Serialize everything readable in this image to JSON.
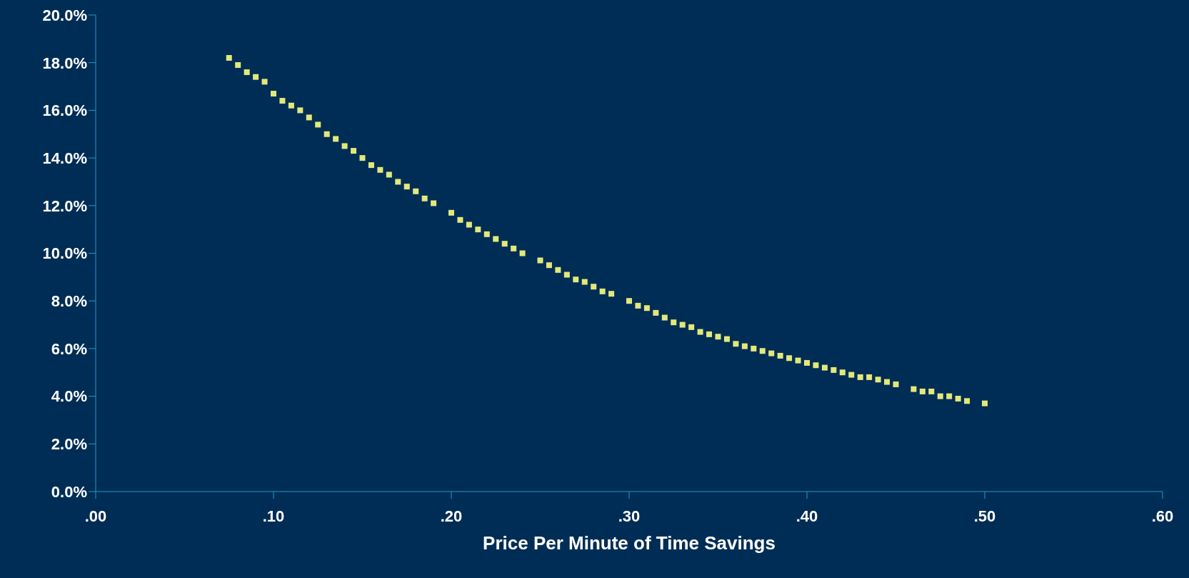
{
  "chart_data": {
    "type": "scatter",
    "xlabel": "Price Per Minute of Time Savings",
    "x": [
      0.075,
      0.08,
      0.085,
      0.09,
      0.095,
      0.1,
      0.105,
      0.11,
      0.115,
      0.12,
      0.125,
      0.13,
      0.135,
      0.14,
      0.145,
      0.15,
      0.155,
      0.16,
      0.165,
      0.17,
      0.175,
      0.18,
      0.185,
      0.19,
      0.2,
      0.205,
      0.21,
      0.215,
      0.22,
      0.225,
      0.23,
      0.235,
      0.24,
      0.25,
      0.255,
      0.26,
      0.265,
      0.27,
      0.275,
      0.28,
      0.285,
      0.29,
      0.3,
      0.305,
      0.31,
      0.315,
      0.32,
      0.325,
      0.33,
      0.335,
      0.34,
      0.345,
      0.35,
      0.355,
      0.36,
      0.365,
      0.37,
      0.375,
      0.38,
      0.385,
      0.39,
      0.395,
      0.4,
      0.405,
      0.41,
      0.415,
      0.42,
      0.425,
      0.43,
      0.435,
      0.44,
      0.445,
      0.45,
      0.46,
      0.465,
      0.47,
      0.475,
      0.48,
      0.485,
      0.49,
      0.5
    ],
    "series": [
      {
        "color": "#e3e87a",
        "values": [
          18.2,
          17.9,
          17.6,
          17.4,
          17.2,
          16.7,
          16.4,
          16.2,
          16.0,
          15.7,
          15.4,
          15.0,
          14.8,
          14.5,
          14.3,
          14.0,
          13.7,
          13.5,
          13.3,
          13.0,
          12.8,
          12.6,
          12.3,
          12.1,
          11.7,
          11.4,
          11.2,
          11.0,
          10.8,
          10.6,
          10.4,
          10.2,
          10.0,
          9.7,
          9.5,
          9.3,
          9.1,
          8.9,
          8.8,
          8.6,
          8.4,
          8.3,
          8.0,
          7.8,
          7.7,
          7.5,
          7.3,
          7.1,
          7.0,
          6.9,
          6.7,
          6.6,
          6.5,
          6.4,
          6.2,
          6.1,
          6.0,
          5.9,
          5.8,
          5.7,
          5.6,
          5.5,
          5.4,
          5.3,
          5.2,
          5.1,
          5.0,
          4.9,
          4.8,
          4.8,
          4.7,
          4.6,
          4.5,
          4.3,
          4.2,
          4.2,
          4.0,
          4.0,
          3.9,
          3.8,
          3.7
        ]
      }
    ],
    "xlim": [
      0,
      0.6
    ],
    "xticks": [
      {
        "value": 0,
        "label": ".00"
      },
      {
        "value": 0.1,
        "label": ".10"
      },
      {
        "value": 0.2,
        "label": ".20"
      },
      {
        "value": 0.3,
        "label": ".30"
      },
      {
        "value": 0.4,
        "label": ".40"
      },
      {
        "value": 0.5,
        "label": ".50"
      },
      {
        "value": 0.6,
        "label": ".60"
      }
    ],
    "ylim": [
      0,
      20
    ],
    "yticks": [
      {
        "value": 0,
        "label": "0.0%"
      },
      {
        "value": 2,
        "label": "2.0%"
      },
      {
        "value": 4,
        "label": "4.0%"
      },
      {
        "value": 6,
        "label": "6.0%"
      },
      {
        "value": 8,
        "label": "8.0%"
      },
      {
        "value": 10,
        "label": "10.0%"
      },
      {
        "value": 12,
        "label": "12.0%"
      },
      {
        "value": 14,
        "label": "14.0%"
      },
      {
        "value": 16,
        "label": "16.0%"
      },
      {
        "value": 18,
        "label": "18.0%"
      },
      {
        "value": 20,
        "label": "20.0%"
      }
    ],
    "grid": false,
    "legend": false,
    "marker": "square"
  }
}
